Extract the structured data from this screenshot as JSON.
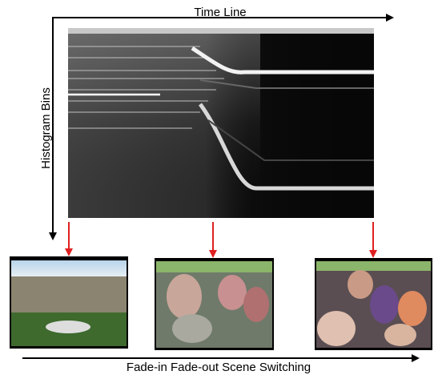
{
  "labels": {
    "time_axis": "Time Line",
    "bins_axis": "Histogram Bins",
    "caption": "Fade-in Fade-out Scene Switching"
  }
}
